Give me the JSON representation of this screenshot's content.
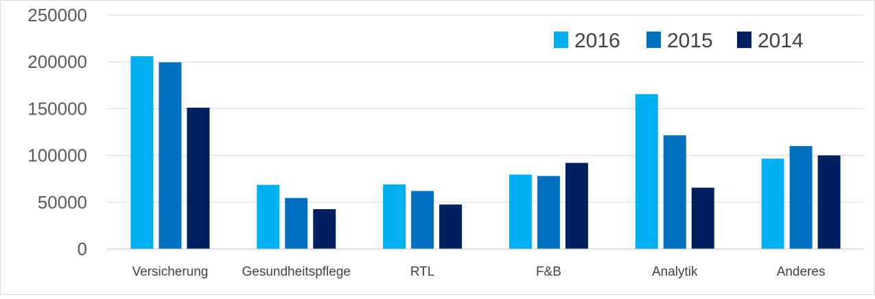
{
  "chart_data": {
    "type": "bar",
    "title": "",
    "xlabel": "",
    "ylabel": "",
    "categories": [
      "Versicherung",
      "Gesundheitspflege",
      "RTL",
      "F&B",
      "Analytik",
      "Anderes"
    ],
    "series": [
      {
        "name": "2016",
        "color": "#00b0f0",
        "values": [
          206000,
          68500,
          69000,
          79500,
          165500,
          96500
        ]
      },
      {
        "name": "2015",
        "color": "#0070c0",
        "values": [
          199500,
          54500,
          62000,
          78000,
          121500,
          110000
        ]
      },
      {
        "name": "2014",
        "color": "#002060",
        "values": [
          151000,
          42500,
          47500,
          92000,
          65500,
          100000
        ]
      }
    ],
    "ylim": [
      0,
      250000
    ],
    "yticks": [
      0,
      50000,
      100000,
      150000,
      200000,
      250000
    ],
    "grid": true,
    "legend": "top-right"
  }
}
